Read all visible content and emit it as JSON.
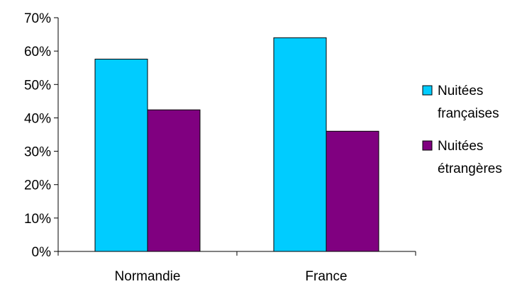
{
  "chart_data": {
    "type": "bar",
    "title": "",
    "xlabel": "",
    "ylabel": "",
    "categories": [
      "Normandie",
      "France"
    ],
    "series": [
      {
        "name": "Nuitées françaises",
        "legend_lines": [
          "Nuitées",
          "françaises"
        ],
        "color": "#00CCFF",
        "values": [
          57.6,
          64.0
        ]
      },
      {
        "name": "Nuitées étrangères",
        "legend_lines": [
          "Nuitées",
          "étrangères"
        ],
        "color": "#800080",
        "values": [
          42.4,
          36.0
        ]
      }
    ],
    "ylim": [
      0,
      70
    ],
    "yticks": [
      0,
      10,
      20,
      30,
      40,
      50,
      60,
      70
    ],
    "ytick_labels": [
      "0%",
      "10%",
      "20%",
      "30%",
      "40%",
      "50%",
      "60%",
      "70%"
    ],
    "grid": false,
    "legend_position": "right"
  }
}
